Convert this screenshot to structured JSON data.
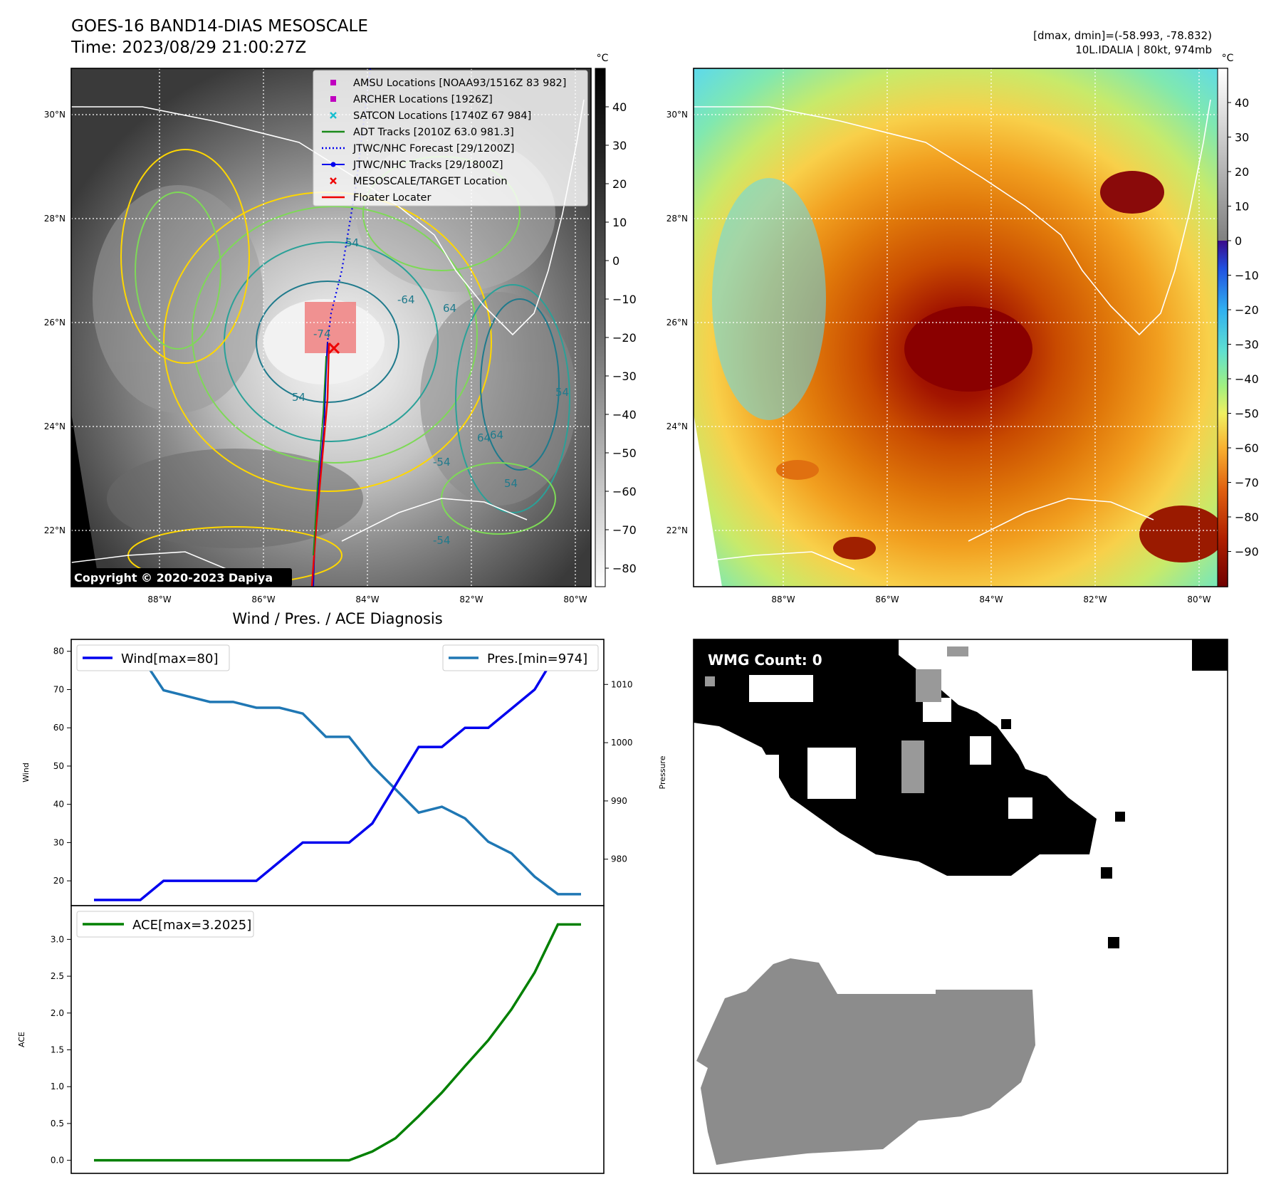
{
  "header": {
    "title_line1": "GOES-16 BAND14-DIAS MESOSCALE",
    "title_line2": "Time: 2023/08/29 21:00:27Z",
    "dmax_dmin": "[dmax, dmin]=(-58.993, -78.832)",
    "storm_info": "10L.IDALIA | 80kt, 974mb"
  },
  "map_axes": {
    "lon_ticks": [
      "88°W",
      "86°W",
      "84°W",
      "82°W",
      "80°W"
    ],
    "lat_ticks": [
      "30°N",
      "28°N",
      "26°N",
      "24°N",
      "22°N"
    ]
  },
  "ir_panel": {
    "legend": [
      {
        "label": "AMSU Locations [NOAA93/1516Z 83 982]",
        "marker": "square",
        "color": "#c000c0"
      },
      {
        "label": "ARCHER Locations [1926Z]",
        "marker": "square",
        "color": "#c000c0"
      },
      {
        "label": "SATCON Locations [1740Z 67 984]",
        "marker": "x",
        "color": "#17becf"
      },
      {
        "label": "ADT Tracks [2010Z 63.0 981.3]",
        "marker": "line",
        "color": "#1a8a1a"
      },
      {
        "label": "JTWC/NHC Forecast [29/1200Z]",
        "marker": "dotted",
        "color": "#0000ee"
      },
      {
        "label": "JTWC/NHC Tracks [29/1800Z]",
        "marker": "line-dot",
        "color": "#0000ee"
      },
      {
        "label": "MESOSCALE/TARGET Location",
        "marker": "x",
        "color": "#ee0000"
      },
      {
        "label": "Floater Locater",
        "marker": "line",
        "color": "#ee0000"
      }
    ],
    "copyright": "Copyright © 2020-2023 Dapiya",
    "colorbar_unit": "°C",
    "colorbar_ticks": [
      "40",
      "30",
      "20",
      "10",
      "0",
      "−10",
      "−20",
      "−30",
      "−40",
      "−50",
      "−60",
      "−70",
      "−80"
    ],
    "contour_labels": [
      "54",
      "64",
      "54",
      "64",
      "64",
      "54",
      "54",
      "-54",
      "-54",
      "-64",
      "-74"
    ]
  },
  "enhanced_panel": {
    "colorbar_unit": "°C",
    "colorbar_ticks": [
      "40",
      "30",
      "20",
      "10",
      "0",
      "−10",
      "−20",
      "−30",
      "−40",
      "−50",
      "−60",
      "−70",
      "−80",
      "−90"
    ]
  },
  "diagnosis_panel": {
    "title": "Wind / Pres. / ACE Diagnosis",
    "wind_ylabel": "Wind",
    "pressure_ylabel": "Pressure",
    "ace_ylabel": "ACE",
    "wind_legend": "Wind[max=80]",
    "pres_legend": "Pres.[min=974]",
    "ace_legend": "ACE[max=3.2025]",
    "wind_ticks": [
      "80",
      "70",
      "60",
      "50",
      "40",
      "30",
      "20"
    ],
    "pres_ticks": [
      "1010",
      "1000",
      "990",
      "980"
    ],
    "ace_ticks": [
      "3.0",
      "2.5",
      "2.0",
      "1.5",
      "1.0",
      "0.5",
      "0.0"
    ],
    "colors": {
      "wind": "#0000ee",
      "pressure": "#1f77b4",
      "ace": "#008000"
    }
  },
  "chart_data": [
    {
      "type": "line",
      "title": "Wind / Pres. / ACE Diagnosis",
      "x": [
        0,
        1,
        2,
        3,
        4,
        5,
        6,
        7,
        8,
        9,
        10,
        11,
        12,
        13,
        14,
        15,
        16,
        17,
        18,
        19,
        20,
        21
      ],
      "series": [
        {
          "name": "Wind[max=80]",
          "axis": "left",
          "values": [
            15,
            15,
            15,
            20,
            20,
            20,
            20,
            20,
            25,
            30,
            30,
            30,
            35,
            45,
            55,
            55,
            60,
            60,
            65,
            70,
            80,
            80
          ]
        },
        {
          "name": "Pres.[min=974]",
          "axis": "right",
          "values": [
            1015,
            1015,
            1015,
            1009,
            1008,
            1007,
            1007,
            1006,
            1006,
            1005,
            1001,
            1001,
            996,
            992,
            988,
            989,
            987,
            983,
            981,
            977,
            974,
            974
          ]
        }
      ],
      "ylabel_left": "Wind",
      "ylabel_right": "Pressure",
      "ylim_left": [
        15,
        82
      ],
      "ylim_right": [
        973,
        1017
      ],
      "grid": false,
      "legend": [
        "top-left",
        "top-right"
      ]
    },
    {
      "type": "line",
      "x": [
        0,
        1,
        2,
        3,
        4,
        5,
        6,
        7,
        8,
        9,
        10,
        11,
        12,
        13,
        14,
        15,
        16,
        17,
        18,
        19,
        20,
        21
      ],
      "series": [
        {
          "name": "ACE[max=3.2025]",
          "values": [
            0,
            0,
            0,
            0,
            0,
            0,
            0,
            0,
            0,
            0,
            0,
            0,
            0.12,
            0.3,
            0.6,
            0.92,
            1.28,
            1.63,
            2.05,
            2.55,
            3.2025,
            3.2025
          ]
        }
      ],
      "ylabel": "ACE",
      "ylim": [
        -0.1,
        3.4
      ],
      "grid": false,
      "legend": "top-left"
    }
  ],
  "wmg_panel": {
    "label": "WMG Count: 0"
  }
}
